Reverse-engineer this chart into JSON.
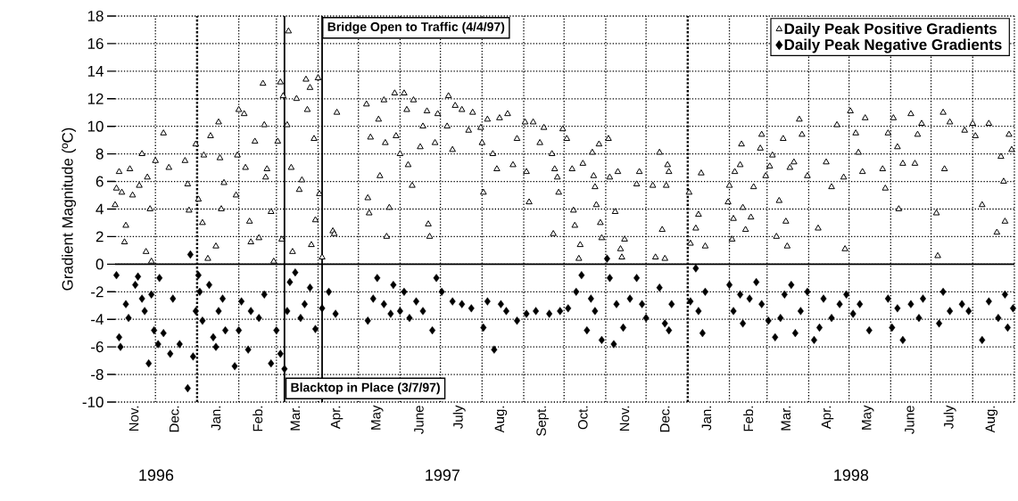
{
  "chart_data": {
    "type": "scatter",
    "ylabel": "Gradient Magnitude (ºC)",
    "xlim": [
      "1996-11-01",
      "1998-09-01"
    ],
    "ylim": [
      -10,
      18
    ],
    "yticks": [
      -10,
      -8,
      -6,
      -4,
      -2,
      0,
      2,
      4,
      6,
      8,
      10,
      12,
      14,
      16,
      18
    ],
    "xticks": [
      {
        "value": "1996-12-01",
        "label": null
      },
      {
        "value": "1997-02-01",
        "label": null
      },
      {
        "value": "1997-03-01",
        "label": null
      },
      {
        "value": "1997-04-01",
        "label": null
      },
      {
        "value": "1997-05-01",
        "label": null
      },
      {
        "value": "1997-06-01",
        "label": null
      },
      {
        "value": "1997-07-01",
        "label": null
      },
      {
        "value": "1997-08-01",
        "label": null
      },
      {
        "value": "1997-09-01",
        "label": null
      },
      {
        "value": "1997-10-01",
        "label": null
      },
      {
        "value": "1997-11-01",
        "label": null
      },
      {
        "value": "1997-12-01",
        "label": null
      },
      {
        "value": "1998-02-01",
        "label": null
      },
      {
        "value": "1998-03-01",
        "label": null
      },
      {
        "value": "1998-04-01",
        "label": null
      },
      {
        "value": "1998-05-01",
        "label": null
      },
      {
        "value": "1998-06-01",
        "label": null
      },
      {
        "value": "1998-07-01",
        "label": null
      },
      {
        "value": "1998-08-01",
        "label": null
      },
      {
        "value": "1998-09-01",
        "label": null
      },
      {
        "value": "1996-11-15",
        "label": "Nov."
      },
      {
        "value": "1996-12-15",
        "label": "Dec."
      },
      {
        "value": "1997-01-15",
        "label": "Jan."
      },
      {
        "value": "1997-02-15",
        "label": "Feb."
      },
      {
        "value": "1997-03-15",
        "label": "Mar."
      },
      {
        "value": "1997-04-15",
        "label": "Apr."
      },
      {
        "value": "1997-05-15",
        "label": "May"
      },
      {
        "value": "1997-06-15",
        "label": "June"
      },
      {
        "value": "1997-07-15",
        "label": "July"
      },
      {
        "value": "1997-08-15",
        "label": "Aug."
      },
      {
        "value": "1997-09-15",
        "label": "Sept."
      },
      {
        "value": "1997-10-15",
        "label": "Oct."
      },
      {
        "value": "1997-11-15",
        "label": "Nov."
      },
      {
        "value": "1997-12-15",
        "label": "Dec."
      },
      {
        "value": "1998-01-15",
        "label": "Jan."
      },
      {
        "value": "1998-02-15",
        "label": "Feb."
      },
      {
        "value": "1998-03-15",
        "label": "Mar."
      },
      {
        "value": "1998-04-15",
        "label": "Apr."
      },
      {
        "value": "1998-05-15",
        "label": "May"
      },
      {
        "value": "1998-06-15",
        "label": "June"
      },
      {
        "value": "1998-07-15",
        "label": "July"
      },
      {
        "value": "1998-08-15",
        "label": "Aug."
      }
    ],
    "grid": true,
    "legend": "top right",
    "ref_lines": [
      {
        "axis": "x",
        "value": "1997-03-07",
        "label": "Blacktop in Place (3/7/97)",
        "line_style": "solid"
      },
      {
        "axis": "x",
        "value": "1997-04-04",
        "label": "Bridge Open to Traffic (4/4/97)",
        "line_style": "solid"
      },
      {
        "axis": "y",
        "value": 0,
        "line_style": "solid"
      },
      {
        "axis": "x",
        "value": "1997-01-01",
        "line_style": "dotted"
      },
      {
        "axis": "x",
        "value": "1998-01-01",
        "line_style": "dotted"
      }
    ],
    "annotations": [
      "1996",
      "1997",
      "1998"
    ],
    "series": [
      {
        "name": "Daily Peak Positive Gradients",
        "color": "#000000",
        "marker": "triangle",
        "x": [
          "1996-11-01",
          "1996-11-02",
          "1996-11-04",
          "1996-11-06",
          "1996-11-08",
          "1996-11-09",
          "1996-11-12",
          "1996-11-14",
          "1996-11-19",
          "1996-11-21",
          "1996-11-24",
          "1996-11-25",
          "1996-11-27",
          "1996-11-28",
          "1996-12-01",
          "1996-12-07",
          "1996-12-11",
          "1996-12-23",
          "1996-12-25",
          "1996-12-26",
          "1996-12-31",
          "1997-01-02",
          "1997-01-05",
          "1997-01-06",
          "1997-01-09",
          "1997-01-11",
          "1997-01-15",
          "1997-01-17",
          "1997-01-18",
          "1997-01-19",
          "1997-01-21",
          "1997-01-30",
          "1997-01-31",
          "1997-02-01",
          "1997-02-05",
          "1997-02-06",
          "1997-02-09",
          "1997-02-10",
          "1997-02-13",
          "1997-02-16",
          "1997-02-19",
          "1997-02-20",
          "1997-02-21",
          "1997-02-22",
          "1997-02-25",
          "1997-02-27",
          "1997-03-02",
          "1997-03-04",
          "1997-03-05",
          "1997-03-06",
          "1997-03-09",
          "1997-03-10",
          "1997-03-12",
          "1997-03-13",
          "1997-03-16",
          "1997-03-18",
          "1997-03-20",
          "1997-03-23",
          "1997-03-24",
          "1997-03-26",
          "1997-03-27",
          "1997-03-29",
          "1997-03-30",
          "1997-04-01",
          "1997-04-02",
          "1997-04-04",
          "1997-04-12",
          "1997-04-13",
          "1997-04-15",
          "1997-05-07",
          "1997-05-08",
          "1997-05-09",
          "1997-05-10",
          "1997-05-16",
          "1997-05-17",
          "1997-05-20",
          "1997-05-21",
          "1997-05-22",
          "1997-05-24",
          "1997-05-28",
          "1997-05-29",
          "1997-06-01",
          "1997-06-04",
          "1997-06-06",
          "1997-06-07",
          "1997-06-10",
          "1997-06-11",
          "1997-06-16",
          "1997-06-18",
          "1997-06-21",
          "1997-06-22",
          "1997-06-23",
          "1997-06-27",
          "1997-06-29",
          "1997-07-06",
          "1997-07-07",
          "1997-07-10",
          "1997-07-12",
          "1997-07-17",
          "1997-07-22",
          "1997-07-25",
          "1997-07-31",
          "1997-08-01",
          "1997-08-02",
          "1997-08-05",
          "1997-08-09",
          "1997-08-12",
          "1997-08-14",
          "1997-08-20",
          "1997-08-24",
          "1997-08-27",
          "1997-09-02",
          "1997-09-03",
          "1997-09-05",
          "1997-09-08",
          "1997-09-13",
          "1997-09-16",
          "1997-09-22",
          "1997-09-23",
          "1997-09-24",
          "1997-09-26",
          "1997-09-27",
          "1997-09-30",
          "1997-10-03",
          "1997-10-07",
          "1997-10-08",
          "1997-10-09",
          "1997-10-12",
          "1997-10-13",
          "1997-10-15",
          "1997-10-22",
          "1997-10-23",
          "1997-10-24",
          "1997-10-25",
          "1997-10-27",
          "1997-10-28",
          "1997-10-29",
          "1997-11-03",
          "1997-11-04",
          "1997-11-08",
          "1997-11-10",
          "1997-11-12",
          "1997-11-13",
          "1997-11-15",
          "1997-11-24",
          "1997-11-26",
          "1997-12-06",
          "1997-12-08",
          "1997-12-11",
          "1997-12-13",
          "1997-12-15",
          "1997-12-16",
          "1997-12-17",
          "1997-12-18",
          "1998-01-02",
          "1998-01-03",
          "1998-01-07",
          "1998-01-09",
          "1998-01-11",
          "1998-01-14",
          "1998-01-31",
          "1998-02-01",
          "1998-02-03",
          "1998-02-04",
          "1998-02-05",
          "1998-02-09",
          "1998-02-10",
          "1998-02-11",
          "1998-02-13",
          "1998-02-17",
          "1998-02-19",
          "1998-02-24",
          "1998-02-25",
          "1998-02-28",
          "1998-03-03",
          "1998-03-05",
          "1998-03-08",
          "1998-03-10",
          "1998-03-13",
          "1998-03-15",
          "1998-03-16",
          "1998-03-18",
          "1998-03-21",
          "1998-03-25",
          "1998-03-27",
          "1998-03-31",
          "1998-04-08",
          "1998-04-14",
          "1998-04-18",
          "1998-04-22",
          "1998-04-27",
          "1998-04-28",
          "1998-05-02",
          "1998-05-06",
          "1998-05-08",
          "1998-05-11",
          "1998-05-13",
          "1998-05-26",
          "1998-05-28",
          "1998-05-30",
          "1998-06-03",
          "1998-06-06",
          "1998-06-07",
          "1998-06-10",
          "1998-06-16",
          "1998-06-19",
          "1998-06-21",
          "1998-06-24",
          "1998-07-05",
          "1998-07-06",
          "1998-07-10",
          "1998-07-11",
          "1998-07-15",
          "1998-07-26",
          "1998-08-01",
          "1998-08-03",
          "1998-08-08",
          "1998-08-13",
          "1998-08-19",
          "1998-08-22",
          "1998-08-24",
          "1998-08-25",
          "1998-08-28",
          "1998-08-30"
        ],
        "values": [
          4.3,
          5.5,
          6.7,
          5.2,
          1.6,
          2.8,
          6.9,
          5.0,
          5.7,
          8.0,
          0.9,
          6.3,
          4.0,
          0.2,
          7.5,
          9.5,
          7.0,
          7.5,
          5.8,
          3.9,
          8.7,
          4.7,
          3.0,
          7.9,
          0.4,
          9.3,
          1.3,
          10.3,
          7.7,
          4.0,
          5.9,
          5.0,
          7.9,
          11.2,
          10.9,
          7.0,
          3.1,
          1.6,
          8.9,
          1.9,
          13.1,
          10.1,
          6.3,
          6.9,
          3.8,
          0.2,
          8.9,
          13.2,
          1.8,
          12.2,
          10.1,
          16.9,
          7.0,
          0.9,
          12.0,
          5.4,
          6.1,
          13.4,
          11.2,
          12.8,
          1.4,
          9.1,
          3.2,
          13.5,
          5.1,
          0.5,
          2.4,
          2.2,
          11.0,
          11.6,
          4.8,
          3.7,
          9.2,
          10.5,
          6.4,
          11.9,
          8.8,
          2.0,
          4.1,
          12.4,
          9.3,
          8.0,
          12.4,
          11.2,
          7.2,
          5.7,
          11.9,
          8.5,
          10.0,
          11.1,
          2.9,
          2.0,
          8.8,
          10.9,
          10.0,
          12.2,
          8.3,
          11.5,
          11.2,
          9.7,
          11.0,
          9.9,
          8.8,
          5.2,
          10.5,
          8.0,
          6.9,
          10.6,
          10.9,
          7.2,
          9.1,
          10.3,
          6.7,
          4.5,
          10.3,
          8.8,
          9.9,
          8.0,
          2.2,
          6.9,
          6.3,
          5.2,
          9.8,
          9.1,
          6.9,
          3.9,
          2.8,
          0.4,
          1.4,
          7.3,
          8.1,
          6.4,
          5.6,
          4.3,
          8.7,
          3.0,
          1.9,
          9.1,
          6.3,
          3.8,
          6.7,
          1.1,
          0.5,
          1.8,
          5.8,
          6.7,
          5.7,
          0.5,
          8.1,
          2.5,
          0.4,
          5.7,
          7.2,
          6.7,
          5.2,
          1.5,
          2.6,
          3.6,
          6.6,
          1.3,
          4.5,
          5.7,
          1.8,
          3.3,
          6.7,
          7.2,
          8.7,
          4.1,
          2.5,
          3.4,
          5.6,
          8.4,
          9.4,
          6.4,
          7.1,
          7.9,
          2.0,
          4.6,
          9.1,
          3.1,
          1.3,
          7.0,
          7.4,
          10.5,
          9.4,
          6.4,
          2.6,
          7.4,
          5.6,
          10.1,
          6.3,
          1.1,
          11.1,
          9.5,
          8.1,
          6.7,
          10.6,
          6.9,
          5.5,
          9.5,
          10.6,
          8.5,
          4.0,
          7.3,
          10.9,
          7.3,
          9.4,
          10.2,
          3.7,
          0.6,
          11.0,
          6.9,
          10.3,
          9.7,
          10.2,
          9.3,
          4.3,
          10.2,
          2.3,
          7.8,
          6.0,
          3.1,
          9.4,
          8.3
        ]
      },
      {
        "name": "Daily Peak Negative Gradients",
        "color": "#000000",
        "marker": "diamond",
        "x": [
          "1996-11-02",
          "1996-11-04",
          "1996-11-05",
          "1996-11-09",
          "1996-11-11",
          "1996-11-16",
          "1996-11-18",
          "1996-11-21",
          "1996-11-23",
          "1996-11-26",
          "1996-11-28",
          "1996-11-30",
          "1996-12-03",
          "1996-12-04",
          "1996-12-07",
          "1996-12-12",
          "1996-12-14",
          "1996-12-19",
          "1996-12-25",
          "1996-12-27",
          "1996-12-29",
          "1996-12-31",
          "1997-01-02",
          "1997-01-03",
          "1997-01-05",
          "1997-01-10",
          "1997-01-13",
          "1997-01-15",
          "1997-01-17",
          "1997-01-20",
          "1997-01-22",
          "1997-01-29",
          "1997-02-01",
          "1997-02-03",
          "1997-02-08",
          "1997-02-10",
          "1997-02-16",
          "1997-02-20",
          "1997-02-25",
          "1997-03-01",
          "1997-03-04",
          "1997-03-07",
          "1997-03-09",
          "1997-03-11",
          "1997-03-15",
          "1997-03-19",
          "1997-03-22",
          "1997-03-26",
          "1997-03-30",
          "1997-04-04",
          "1997-04-09",
          "1997-04-14",
          "1997-05-08",
          "1997-05-12",
          "1997-05-15",
          "1997-05-20",
          "1997-05-25",
          "1997-05-27",
          "1997-06-01",
          "1997-06-04",
          "1997-06-08",
          "1997-06-13",
          "1997-06-18",
          "1997-06-25",
          "1997-06-28",
          "1997-07-02",
          "1997-07-10",
          "1997-07-17",
          "1997-07-24",
          "1997-08-02",
          "1997-08-05",
          "1997-08-10",
          "1997-08-15",
          "1997-08-19",
          "1997-08-27",
          "1997-09-03",
          "1997-09-10",
          "1997-09-20",
          "1997-09-28",
          "1997-10-04",
          "1997-10-10",
          "1997-10-14",
          "1997-10-18",
          "1997-10-21",
          "1997-10-24",
          "1997-10-29",
          "1997-11-02",
          "1997-11-04",
          "1997-11-07",
          "1997-11-09",
          "1997-11-14",
          "1997-11-19",
          "1997-11-24",
          "1997-11-28",
          "1997-12-01",
          "1997-12-11",
          "1997-12-15",
          "1997-12-18",
          "1997-12-20",
          "1998-01-03",
          "1998-01-07",
          "1998-01-09",
          "1998-01-12",
          "1998-01-14",
          "1998-02-01",
          "1998-02-04",
          "1998-02-09",
          "1998-02-11",
          "1998-02-16",
          "1998-02-21",
          "1998-02-25",
          "1998-03-02",
          "1998-03-07",
          "1998-03-11",
          "1998-03-14",
          "1998-03-19",
          "1998-03-22",
          "1998-03-26",
          "1998-03-31",
          "1998-04-05",
          "1998-04-09",
          "1998-04-12",
          "1998-04-18",
          "1998-04-24",
          "1998-04-29",
          "1998-05-04",
          "1998-05-09",
          "1998-05-16",
          "1998-05-30",
          "1998-06-02",
          "1998-06-06",
          "1998-06-10",
          "1998-06-16",
          "1998-06-22",
          "1998-06-25",
          "1998-07-07",
          "1998-07-10",
          "1998-07-15",
          "1998-07-24",
          "1998-07-29",
          "1998-08-08",
          "1998-08-13",
          "1998-08-20",
          "1998-08-25",
          "1998-08-27",
          "1998-08-31"
        ],
        "values": [
          -0.8,
          -5.3,
          -6.0,
          -2.9,
          -3.9,
          -1.5,
          -0.9,
          -2.5,
          -3.4,
          -7.2,
          -2.2,
          -4.8,
          -5.8,
          -1.0,
          -5.0,
          -6.5,
          -2.5,
          -5.8,
          -9.0,
          0.7,
          -6.7,
          -3.4,
          -0.8,
          -2.0,
          -4.1,
          -1.5,
          -5.3,
          -6.0,
          -3.4,
          -2.5,
          -4.8,
          -7.4,
          -4.8,
          -2.7,
          -6.2,
          -3.4,
          -3.9,
          -2.2,
          -7.2,
          -4.8,
          -6.5,
          -7.6,
          -3.4,
          -1.3,
          -0.6,
          -3.9,
          -2.9,
          -1.7,
          -4.7,
          -3.2,
          -2.0,
          -3.6,
          -4.1,
          -2.5,
          -1.0,
          -2.9,
          -3.6,
          -1.5,
          -3.4,
          -2.0,
          -3.9,
          -2.7,
          -3.4,
          -4.8,
          -1.0,
          -2.0,
          -2.7,
          -2.9,
          -3.2,
          -4.6,
          -2.7,
          -6.2,
          -2.9,
          -3.4,
          -4.1,
          -3.6,
          -3.4,
          -3.6,
          -3.4,
          -3.2,
          -2.0,
          -0.8,
          -4.8,
          -2.5,
          -3.4,
          -5.5,
          0.4,
          -1.0,
          -5.8,
          -2.9,
          -4.6,
          -2.5,
          -1.0,
          -2.9,
          -3.9,
          -1.7,
          -4.3,
          -4.8,
          -2.9,
          -2.7,
          -0.3,
          -3.4,
          -5.0,
          -2.0,
          -1.5,
          -3.4,
          -2.2,
          -4.3,
          -2.5,
          -1.3,
          -2.9,
          -4.1,
          -5.3,
          -3.9,
          -2.2,
          -1.5,
          -5.0,
          -3.4,
          -2.0,
          -5.5,
          -4.6,
          -2.5,
          -3.9,
          -2.9,
          -2.2,
          -3.6,
          -2.9,
          -4.8,
          -2.5,
          -4.6,
          -3.2,
          -5.5,
          -2.9,
          -3.9,
          -2.5,
          -4.3,
          -2.0,
          -3.4,
          -2.9,
          -3.4,
          -5.5,
          -2.7,
          -3.9,
          -2.2,
          -4.6,
          -3.2
        ]
      }
    ]
  }
}
